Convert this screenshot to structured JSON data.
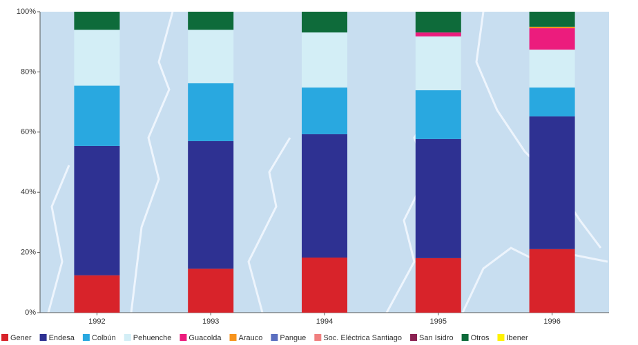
{
  "chart_data": {
    "type": "stacked_bar",
    "categories": [
      "1992",
      "1993",
      "1994",
      "1995",
      "1996"
    ],
    "series": [
      {
        "name": "Gener",
        "color": "#d8232a",
        "values": [
          12.4,
          14.6,
          18.3,
          18.1,
          21.1
        ]
      },
      {
        "name": "Endesa",
        "color": "#2e3192",
        "values": [
          43,
          42.4,
          41,
          39.6,
          44.1
        ]
      },
      {
        "name": "Colbún",
        "color": "#29a8e0",
        "values": [
          20,
          19.2,
          15.5,
          16.2,
          9.6
        ]
      },
      {
        "name": "Pehuenche",
        "color": "#d3eef6",
        "values": [
          18.6,
          17.8,
          18.3,
          17.9,
          12.6
        ]
      },
      {
        "name": "Guacolda",
        "color": "#ec1c7d",
        "values": [
          0,
          0,
          0,
          1.3,
          7.1
        ]
      },
      {
        "name": "Arauco",
        "color": "#f7941d",
        "values": [
          0,
          0,
          0,
          0,
          0.5
        ]
      },
      {
        "name": "Pangue",
        "color": "#5b6fc0",
        "values": [
          0,
          0,
          0,
          0,
          0
        ]
      },
      {
        "name": "Soc. Eléctrica Santiago",
        "color": "#f08080",
        "values": [
          0,
          0,
          0,
          0,
          0
        ]
      },
      {
        "name": "San Isidro",
        "color": "#8b2252",
        "values": [
          0,
          0,
          0,
          0,
          0
        ]
      },
      {
        "name": "Otros",
        "color": "#0e6b3a",
        "values": [
          6,
          6,
          6.9,
          6.9,
          5
        ]
      },
      {
        "name": "Ibener",
        "color": "#fff200",
        "values": [
          0,
          0,
          0,
          0,
          0
        ]
      }
    ],
    "ylim": [
      0,
      100
    ],
    "yticks": [
      {
        "value": 0,
        "label": "0%"
      },
      {
        "value": 20,
        "label": "20%"
      },
      {
        "value": 40,
        "label": "40%"
      },
      {
        "value": 60,
        "label": "60%"
      },
      {
        "value": 80,
        "label": "80%"
      },
      {
        "value": 100,
        "label": "100%"
      }
    ]
  }
}
